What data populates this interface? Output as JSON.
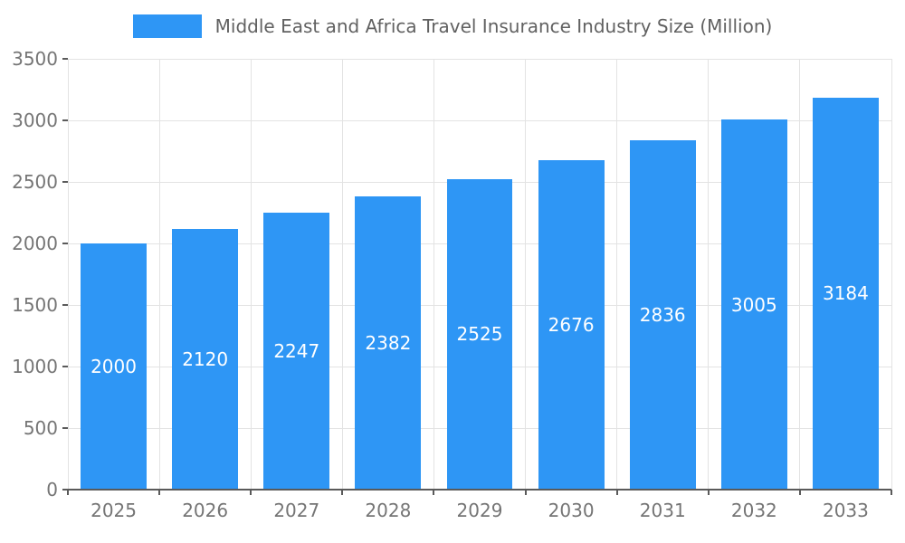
{
  "chart_data": {
    "type": "bar",
    "title": "Middle East and Africa Travel Insurance Industry Size (Million)",
    "categories": [
      "2025",
      "2026",
      "2027",
      "2028",
      "2029",
      "2030",
      "2031",
      "2032",
      "2033"
    ],
    "values": [
      2000,
      2120,
      2247,
      2382,
      2525,
      2676,
      2836,
      3005,
      3184
    ],
    "xlabel": "",
    "ylabel": "",
    "ylim": [
      0,
      3500
    ],
    "yticks": [
      0,
      500,
      1000,
      1500,
      2000,
      2500,
      3000,
      3500
    ],
    "bar_color": "#2E96F5",
    "value_label_color": "#FFFFFF",
    "axis_label_color": "#757575",
    "title_color": "#616161",
    "grid": true,
    "legend_position": "top"
  }
}
